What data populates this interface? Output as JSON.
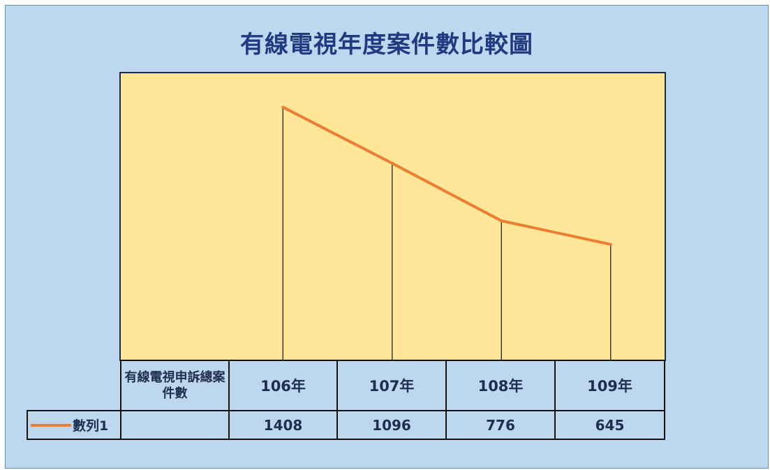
{
  "title": "有線電視年度案件數比較圖",
  "colors": {
    "background": "#bdd7ee",
    "plot_area": "#ffe699",
    "line": "#ed7d31",
    "title": "#1f3a80"
  },
  "table": {
    "row_header": "有線電視申訴總案件數"
  },
  "chart_data": {
    "type": "line",
    "title": "有線電視年度案件數比較圖",
    "categories": [
      "106年",
      "107年",
      "108年",
      "109年"
    ],
    "series": [
      {
        "name": "數列1",
        "values": [
          1408,
          1096,
          776,
          645
        ],
        "color": "#ed7d31"
      }
    ],
    "ylim": [
      0,
      1600
    ],
    "grid": false,
    "drop_lines": true,
    "legend": "data-table",
    "data_table": true
  }
}
